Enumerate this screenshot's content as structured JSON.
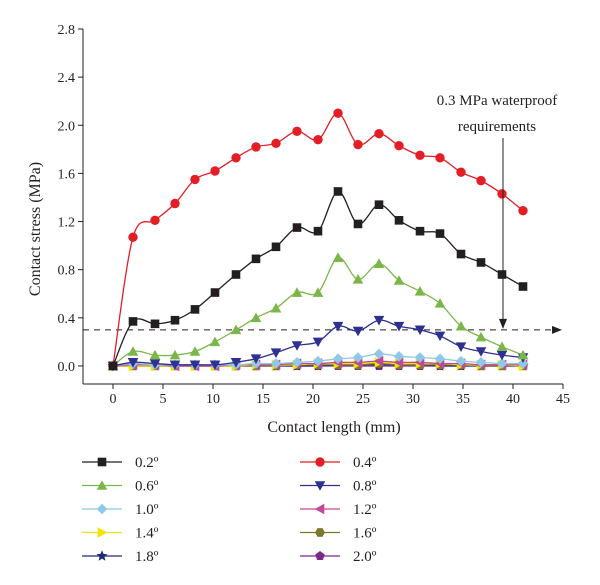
{
  "chart_data": {
    "type": "line",
    "xlabel": "Contact length (mm)",
    "ylabel": "Contact stress (MPa)",
    "xlim": [
      -3,
      45
    ],
    "ylim": [
      -0.15,
      2.8
    ],
    "x_ticks": [
      0,
      5,
      10,
      15,
      20,
      25,
      30,
      35,
      40,
      45
    ],
    "y_ticks": [
      0.0,
      0.4,
      0.8,
      1.2,
      1.6,
      2.0,
      2.4,
      2.8
    ],
    "y_tick_labels": [
      "0.0",
      "0.4",
      "0.8",
      "1.2",
      "1.6",
      "2.0",
      "2.4",
      "2.8"
    ],
    "grid": false,
    "legend_position": "bottom",
    "reference_line": {
      "y": 0.3,
      "style": "dashed",
      "arrow": true
    },
    "annotation": {
      "lines": [
        "0.3 MPa waterproof",
        "requirements"
      ],
      "arrow_to_x": 39,
      "arrow_to_y": 0.3
    },
    "series": [
      {
        "name": "0.2º",
        "color": "#231f20",
        "marker": "square",
        "x": [
          0,
          2,
          4.2,
          6.2,
          8.2,
          10.2,
          12.3,
          14.3,
          16.3,
          18.4,
          20.5,
          22.5,
          24.5,
          26.6,
          28.6,
          30.7,
          32.7,
          34.8,
          36.8,
          38.9,
          41
        ],
        "y": [
          0,
          0.37,
          0.35,
          0.38,
          0.47,
          0.61,
          0.76,
          0.89,
          0.99,
          1.15,
          1.12,
          1.45,
          1.18,
          1.34,
          1.21,
          1.12,
          1.1,
          0.93,
          0.86,
          0.76,
          0.66
        ]
      },
      {
        "name": "0.4º",
        "color": "#e31e24",
        "marker": "circle",
        "x": [
          0,
          2,
          4.2,
          6.2,
          8.2,
          10.2,
          12.3,
          14.3,
          16.3,
          18.4,
          20.5,
          22.5,
          24.5,
          26.6,
          28.6,
          30.7,
          32.7,
          34.8,
          36.8,
          38.9,
          41
        ],
        "y": [
          0,
          1.07,
          1.21,
          1.35,
          1.55,
          1.62,
          1.73,
          1.82,
          1.85,
          1.95,
          1.88,
          2.1,
          1.84,
          1.93,
          1.83,
          1.75,
          1.73,
          1.61,
          1.54,
          1.43,
          1.29
        ]
      },
      {
        "name": "0.6º",
        "color": "#7ab648",
        "marker": "triangle-up",
        "x": [
          0,
          2,
          4.2,
          6.2,
          8.2,
          10.2,
          12.3,
          14.3,
          16.3,
          18.4,
          20.5,
          22.5,
          24.5,
          26.6,
          28.6,
          30.7,
          32.7,
          34.8,
          36.8,
          38.9,
          41
        ],
        "y": [
          0,
          0.12,
          0.09,
          0.09,
          0.12,
          0.2,
          0.3,
          0.4,
          0.48,
          0.61,
          0.61,
          0.9,
          0.72,
          0.85,
          0.71,
          0.62,
          0.52,
          0.33,
          0.24,
          0.16,
          0.09
        ]
      },
      {
        "name": "0.8º",
        "color": "#2e3092",
        "marker": "triangle-down",
        "x": [
          0,
          2,
          4.2,
          6.2,
          8.2,
          10.2,
          12.3,
          14.3,
          16.3,
          18.4,
          20.5,
          22.5,
          24.5,
          26.6,
          28.6,
          30.7,
          32.7,
          34.8,
          36.8,
          38.9,
          41
        ],
        "y": [
          0,
          0.03,
          0.02,
          0.01,
          0.01,
          0.01,
          0.03,
          0.06,
          0.11,
          0.17,
          0.2,
          0.33,
          0.29,
          0.38,
          0.33,
          0.3,
          0.25,
          0.16,
          0.12,
          0.09,
          0.07
        ]
      },
      {
        "name": "1.0º",
        "color": "#8fc8e8",
        "marker": "diamond",
        "x": [
          0,
          2,
          4.2,
          6.2,
          8.2,
          10.2,
          12.3,
          14.3,
          16.3,
          18.4,
          20.5,
          22.5,
          24.5,
          26.6,
          28.6,
          30.7,
          32.7,
          34.8,
          36.8,
          38.9,
          41
        ],
        "y": [
          0,
          0.02,
          0.01,
          0.01,
          0.01,
          0.01,
          0.01,
          0.02,
          0.02,
          0.03,
          0.04,
          0.06,
          0.07,
          0.1,
          0.08,
          0.07,
          0.06,
          0.04,
          0.03,
          0.02,
          0.02
        ]
      },
      {
        "name": "1.2º",
        "color": "#c0479a",
        "marker": "triangle-left",
        "x": [
          0,
          2,
          4.2,
          6.2,
          8.2,
          10.2,
          12.3,
          14.3,
          16.3,
          18.4,
          20.5,
          22.5,
          24.5,
          26.6,
          28.6,
          30.7,
          32.7,
          34.8,
          36.8,
          38.9,
          41
        ],
        "y": [
          0,
          0.01,
          0.01,
          0,
          0,
          0,
          0.01,
          0.01,
          0.01,
          0.02,
          0.02,
          0.03,
          0.03,
          0.04,
          0.03,
          0.03,
          0.02,
          0.02,
          0.01,
          0.01,
          0.01
        ]
      },
      {
        "name": "1.4º",
        "color": "#f2e600",
        "marker": "triangle-right",
        "x": [
          0,
          2,
          4.2,
          6.2,
          8.2,
          10.2,
          12.3,
          14.3,
          16.3,
          18.4,
          20.5,
          22.5,
          24.5,
          26.6,
          28.6,
          30.7,
          32.7,
          34.8,
          36.8,
          38.9,
          41
        ],
        "y": [
          0,
          0,
          0,
          0,
          0,
          0,
          0,
          0.01,
          0.01,
          0.01,
          0.02,
          0.02,
          0.02,
          0.03,
          0.02,
          0.02,
          0.02,
          0.01,
          0.01,
          0.01,
          0
        ]
      },
      {
        "name": "1.6º",
        "color": "#80782d",
        "marker": "hexagon",
        "x": [
          0,
          2,
          4.2,
          6.2,
          8.2,
          10.2,
          12.3,
          14.3,
          16.3,
          18.4,
          20.5,
          22.5,
          24.5,
          26.6,
          28.6,
          30.7,
          32.7,
          34.8,
          36.8,
          38.9,
          41
        ],
        "y": [
          0,
          0,
          0,
          0,
          0,
          0,
          0,
          0,
          0,
          0.01,
          0.01,
          0.01,
          0.01,
          0.02,
          0.01,
          0.01,
          0.01,
          0.01,
          0,
          0,
          0
        ]
      },
      {
        "name": "1.8º",
        "color": "#1f2a78",
        "marker": "star",
        "x": [
          0,
          2,
          4.2,
          6.2,
          8.2,
          10.2,
          12.3,
          14.3,
          16.3,
          18.4,
          20.5,
          22.5,
          24.5,
          26.6,
          28.6,
          30.7,
          32.7,
          34.8,
          36.8,
          38.9,
          41
        ],
        "y": [
          0,
          0,
          0,
          0,
          0,
          0,
          0,
          0,
          0,
          0,
          0,
          0.01,
          0.01,
          0.01,
          0.01,
          0.01,
          0,
          0,
          0,
          0,
          0
        ]
      },
      {
        "name": "2.0º",
        "color": "#7b2a8c",
        "marker": "pentagon",
        "x": [
          0,
          2,
          4.2,
          6.2,
          8.2,
          10.2,
          12.3,
          14.3,
          16.3,
          18.4,
          20.5,
          22.5,
          24.5,
          26.6,
          28.6,
          30.7,
          32.7,
          34.8,
          36.8,
          38.9,
          41
        ],
        "y": [
          0,
          0,
          0,
          0,
          0,
          0,
          0,
          0,
          0,
          0,
          0,
          0,
          0,
          0,
          0,
          0,
          0,
          0,
          0,
          0,
          0
        ]
      }
    ]
  }
}
